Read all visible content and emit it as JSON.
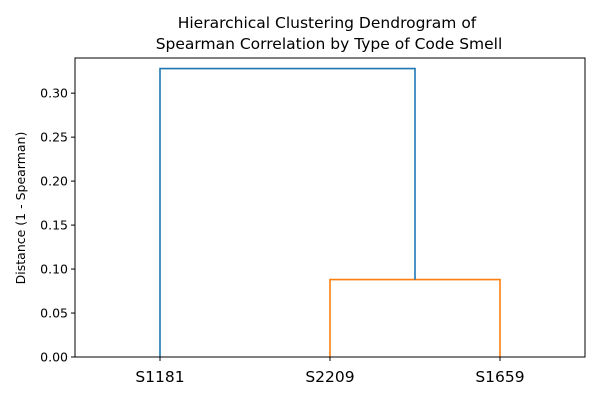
{
  "chart_data": {
    "type": "dendrogram",
    "title": "Hierarchical Clustering Dendrogram of",
    "subtitle": "Spearman Correlation by Type of Code Smell",
    "xlabel": "",
    "ylabel": "Distance (1 - Spearman)",
    "ylim": [
      0,
      0.34
    ],
    "yticks": [
      "0.00",
      "0.05",
      "0.10",
      "0.15",
      "0.20",
      "0.25",
      "0.30"
    ],
    "yticks_values": [
      0,
      0.05,
      0.1,
      0.15,
      0.2,
      0.25,
      0.3
    ],
    "leaves": [
      "S1181",
      "S2209",
      "S1659"
    ],
    "grid": false,
    "links": [
      {
        "left": "S2209",
        "right": "S1659",
        "distance": 0.088,
        "color": "#ff7f0e"
      },
      {
        "left": "S1181",
        "right": "S2209+S1659",
        "distance": 0.328,
        "color": "#1f77b4"
      }
    ]
  }
}
